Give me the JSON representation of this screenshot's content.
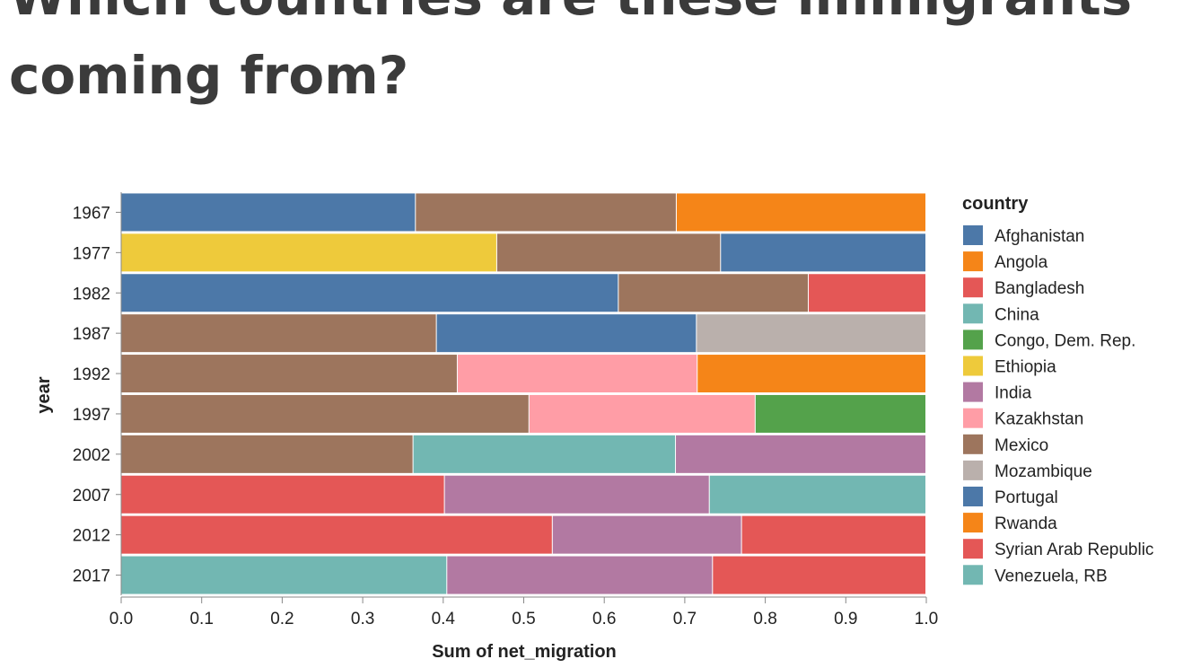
{
  "title": "Which countries are these immigrants coming from?",
  "chart_data": {
    "type": "bar",
    "orientation": "horizontal",
    "stacked": "normalized",
    "xlabel": "Sum of net_migration",
    "ylabel": "year",
    "xlim": [
      0,
      1
    ],
    "xticks": [
      "0.0",
      "0.1",
      "0.2",
      "0.3",
      "0.4",
      "0.5",
      "0.6",
      "0.7",
      "0.8",
      "0.9",
      "1.0"
    ],
    "grid": false,
    "legend_title": "country",
    "legend_position": "right",
    "legend": [
      {
        "name": "Afghanistan",
        "color": "#4c78a8"
      },
      {
        "name": "Angola",
        "color": "#f58518"
      },
      {
        "name": "Bangladesh",
        "color": "#e45756"
      },
      {
        "name": "China",
        "color": "#72b7b2"
      },
      {
        "name": "Congo, Dem. Rep.",
        "color": "#54a24b"
      },
      {
        "name": "Ethiopia",
        "color": "#eeca3b"
      },
      {
        "name": "India",
        "color": "#b279a2"
      },
      {
        "name": "Kazakhstan",
        "color": "#ff9da6"
      },
      {
        "name": "Mexico",
        "color": "#9d755d"
      },
      {
        "name": "Mozambique",
        "color": "#bab0ac"
      },
      {
        "name": "Portugal",
        "color": "#4c78a8"
      },
      {
        "name": "Rwanda",
        "color": "#f58518"
      },
      {
        "name": "Syrian Arab Republic",
        "color": "#e45756"
      },
      {
        "name": "Venezuela, RB",
        "color": "#72b7b2"
      }
    ],
    "categories": [
      "1967",
      "1977",
      "1982",
      "1987",
      "1992",
      "1997",
      "2002",
      "2007",
      "2012",
      "2017"
    ],
    "bars": [
      {
        "year": "1967",
        "segments": [
          {
            "country": "Portugal",
            "value": 0.366
          },
          {
            "country": "Mexico",
            "value": 0.324
          },
          {
            "country": "Angola",
            "value": 0.31
          }
        ]
      },
      {
        "year": "1977",
        "segments": [
          {
            "country": "Ethiopia",
            "value": 0.467
          },
          {
            "country": "Mexico",
            "value": 0.278
          },
          {
            "country": "Afghanistan",
            "value": 0.255
          }
        ]
      },
      {
        "year": "1982",
        "segments": [
          {
            "country": "Afghanistan",
            "value": 0.618
          },
          {
            "country": "Mexico",
            "value": 0.236
          },
          {
            "country": "Bangladesh",
            "value": 0.146
          }
        ]
      },
      {
        "year": "1987",
        "segments": [
          {
            "country": "Mexico",
            "value": 0.392
          },
          {
            "country": "Afghanistan",
            "value": 0.323
          },
          {
            "country": "Mozambique",
            "value": 0.285
          }
        ]
      },
      {
        "year": "1992",
        "segments": [
          {
            "country": "Mexico",
            "value": 0.418
          },
          {
            "country": "Kazakhstan",
            "value": 0.298
          },
          {
            "country": "Rwanda",
            "value": 0.284
          }
        ]
      },
      {
        "year": "1997",
        "segments": [
          {
            "country": "Mexico",
            "value": 0.507
          },
          {
            "country": "Kazakhstan",
            "value": 0.281
          },
          {
            "country": "Congo, Dem. Rep.",
            "value": 0.212
          }
        ]
      },
      {
        "year": "2002",
        "segments": [
          {
            "country": "Mexico",
            "value": 0.363
          },
          {
            "country": "China",
            "value": 0.326
          },
          {
            "country": "India",
            "value": 0.311
          }
        ]
      },
      {
        "year": "2007",
        "segments": [
          {
            "country": "Bangladesh",
            "value": 0.402
          },
          {
            "country": "India",
            "value": 0.329
          },
          {
            "country": "China",
            "value": 0.269
          }
        ]
      },
      {
        "year": "2012",
        "segments": [
          {
            "country": "Bangladesh",
            "value": 0.536
          },
          {
            "country": "India",
            "value": 0.235
          },
          {
            "country": "Syrian Arab Republic",
            "value": 0.229
          }
        ]
      },
      {
        "year": "2017",
        "segments": [
          {
            "country": "China",
            "value": 0.405
          },
          {
            "country": "India",
            "value": 0.33
          },
          {
            "country": "Syrian Arab Republic",
            "value": 0.265
          }
        ]
      }
    ]
  }
}
